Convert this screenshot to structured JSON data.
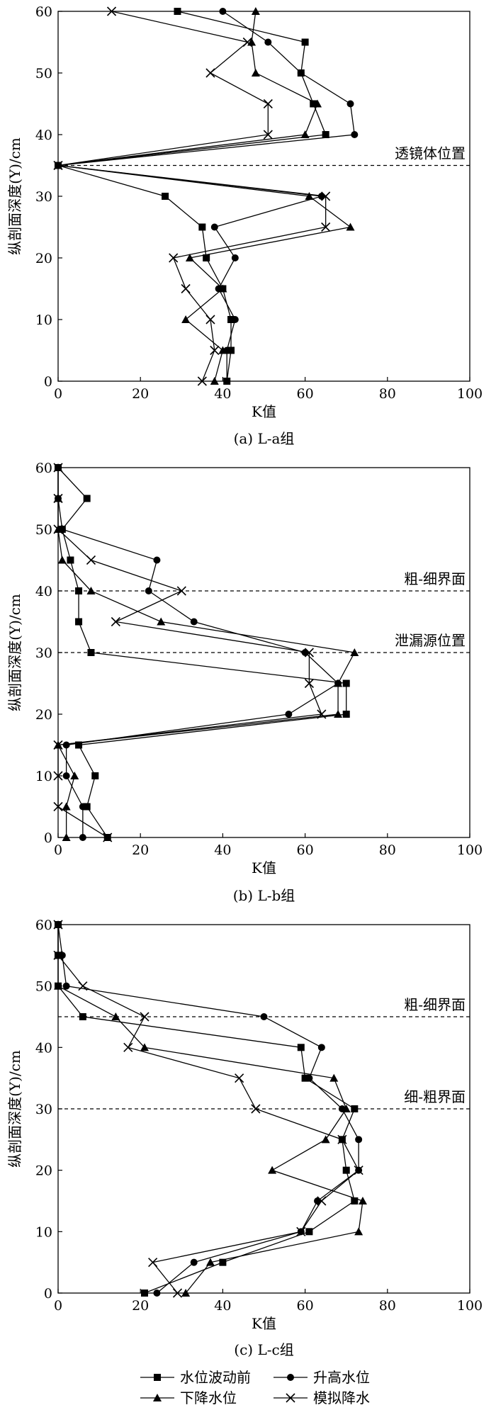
{
  "legend": [
    {
      "name": "水位波动前",
      "marker": "square"
    },
    {
      "name": "升高水位",
      "marker": "circle"
    },
    {
      "name": "下降水位",
      "marker": "triangle"
    },
    {
      "name": "模拟降水",
      "marker": "x"
    }
  ],
  "chart_data": [
    {
      "type": "line",
      "caption": "(a) L-a组",
      "xlabel": "K值",
      "ylabel": "纵剖面深度(Y)/cm",
      "xlim": [
        0,
        100
      ],
      "ylim": [
        0,
        60
      ],
      "xticks": [
        "0",
        "20",
        "40",
        "60",
        "80",
        "100"
      ],
      "yticks": [
        "0",
        "10",
        "20",
        "30",
        "40",
        "50",
        "60"
      ],
      "grid": false,
      "refs": [
        {
          "y": 35,
          "label": "透镜体位置"
        }
      ],
      "y": [
        0,
        5,
        10,
        15,
        20,
        25,
        30,
        35,
        40,
        45,
        50,
        55,
        60
      ],
      "series": [
        {
          "name": "水位波动前",
          "marker": "square",
          "x": [
            41,
            42,
            42,
            40,
            36,
            35,
            26,
            0,
            65,
            62,
            59,
            60,
            29
          ]
        },
        {
          "name": "升高水位",
          "marker": "circle",
          "x": [
            41,
            41,
            43,
            39,
            43,
            38,
            64,
            0,
            72,
            71,
            59,
            51,
            40
          ]
        },
        {
          "name": "下降水位",
          "marker": "triangle",
          "x": [
            38,
            40,
            31,
            40,
            32,
            71,
            61,
            0,
            60,
            63,
            48,
            47,
            48
          ]
        },
        {
          "name": "模拟降水",
          "marker": "x",
          "x": [
            35,
            38,
            37,
            31,
            28,
            65,
            65,
            0,
            51,
            51,
            37,
            46,
            13
          ]
        }
      ]
    },
    {
      "type": "line",
      "caption": "(b) L-b组",
      "xlabel": "K值",
      "ylabel": "纵剖面深度(Y)/cm",
      "xlim": [
        0,
        100
      ],
      "ylim": [
        0,
        60
      ],
      "xticks": [
        "0",
        "20",
        "40",
        "60",
        "80",
        "100"
      ],
      "yticks": [
        "0",
        "10",
        "20",
        "30",
        "40",
        "50",
        "60"
      ],
      "grid": false,
      "refs": [
        {
          "y": 40,
          "label": "粗-细界面"
        },
        {
          "y": 30,
          "label": "泄漏源位置"
        }
      ],
      "y": [
        0,
        5,
        10,
        15,
        20,
        25,
        30,
        35,
        40,
        45,
        50,
        55,
        60
      ],
      "series": [
        {
          "name": "水位波动前",
          "marker": "square",
          "x": [
            12,
            7,
            9,
            5,
            70,
            70,
            8,
            5,
            5,
            3,
            1,
            7,
            0
          ]
        },
        {
          "name": "升高水位",
          "marker": "circle",
          "x": [
            6,
            6,
            2,
            2,
            56,
            68,
            60,
            33,
            22,
            24,
            1,
            0,
            0
          ]
        },
        {
          "name": "下降水位",
          "marker": "triangle",
          "x": [
            2,
            2,
            4,
            0,
            68,
            68,
            72,
            25,
            8,
            1,
            0,
            0,
            0
          ]
        },
        {
          "name": "模拟降水",
          "marker": "x",
          "x": [
            12,
            0,
            0,
            0,
            64,
            61,
            61,
            14,
            30,
            8,
            0,
            0,
            0
          ]
        }
      ]
    },
    {
      "type": "line",
      "caption": "(c) L-c组",
      "xlabel": "K值",
      "ylabel": "纵剖面深度(Y)/cm",
      "xlim": [
        0,
        100
      ],
      "ylim": [
        0,
        60
      ],
      "xticks": [
        "0",
        "20",
        "40",
        "60",
        "80",
        "100"
      ],
      "yticks": [
        "0",
        "10",
        "20",
        "30",
        "40",
        "50",
        "60"
      ],
      "grid": false,
      "refs": [
        {
          "y": 45,
          "label": "粗-细界面"
        },
        {
          "y": 30,
          "label": "细-粗界面"
        }
      ],
      "y": [
        0,
        5,
        10,
        15,
        20,
        25,
        30,
        35,
        40,
        45,
        50,
        55,
        60
      ],
      "series": [
        {
          "name": "水位波动前",
          "marker": "square",
          "x": [
            21,
            40,
            61,
            72,
            70,
            69,
            72,
            60,
            59,
            6,
            0,
            0,
            0
          ]
        },
        {
          "name": "升高水位",
          "marker": "circle",
          "x": [
            24,
            33,
            59,
            63,
            73,
            73,
            69,
            61,
            64,
            50,
            2,
            1,
            0
          ]
        },
        {
          "name": "下降水位",
          "marker": "triangle",
          "x": [
            31,
            37,
            73,
            74,
            52,
            65,
            70,
            67,
            21,
            14,
            0,
            0,
            0
          ]
        },
        {
          "name": "模拟降水",
          "marker": "x",
          "x": [
            29,
            23,
            59,
            64,
            73,
            69,
            48,
            44,
            17,
            21,
            6,
            0,
            0
          ]
        }
      ]
    }
  ]
}
